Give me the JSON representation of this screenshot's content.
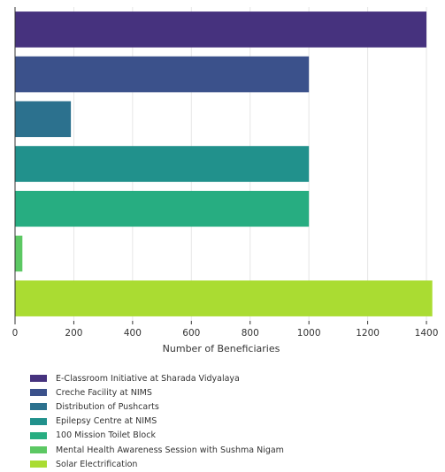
{
  "chart_data": {
    "type": "bar",
    "orientation": "horizontal",
    "categories": [
      "E-Classroom Initiative at Sharada Vidyalaya",
      "Creche Facility at NIMS",
      "Distribution of Pushcarts",
      "Epilepsy Centre at NIMS",
      "100 Mission Toilet Block",
      "Mental Health Awareness Session with Sushma Nigam",
      "Solar Electrification"
    ],
    "values": [
      1400,
      1000,
      190,
      1000,
      1000,
      25,
      1420
    ],
    "colors": [
      "#46327e",
      "#3b518b",
      "#2c718e",
      "#21918c",
      "#27ad81",
      "#5cc863",
      "#aadc32"
    ],
    "xlabel": "Number of Beneficiaries",
    "ylabel": "",
    "xlim": [
      0,
      1430
    ],
    "xticks": [
      0,
      200,
      400,
      600,
      800,
      1000,
      1200,
      1400
    ],
    "xtick_labels": [
      "0",
      "200",
      "400",
      "600",
      "800",
      "1000",
      "1200",
      "1400"
    ],
    "grid": "vertical",
    "legend": "bottom"
  }
}
